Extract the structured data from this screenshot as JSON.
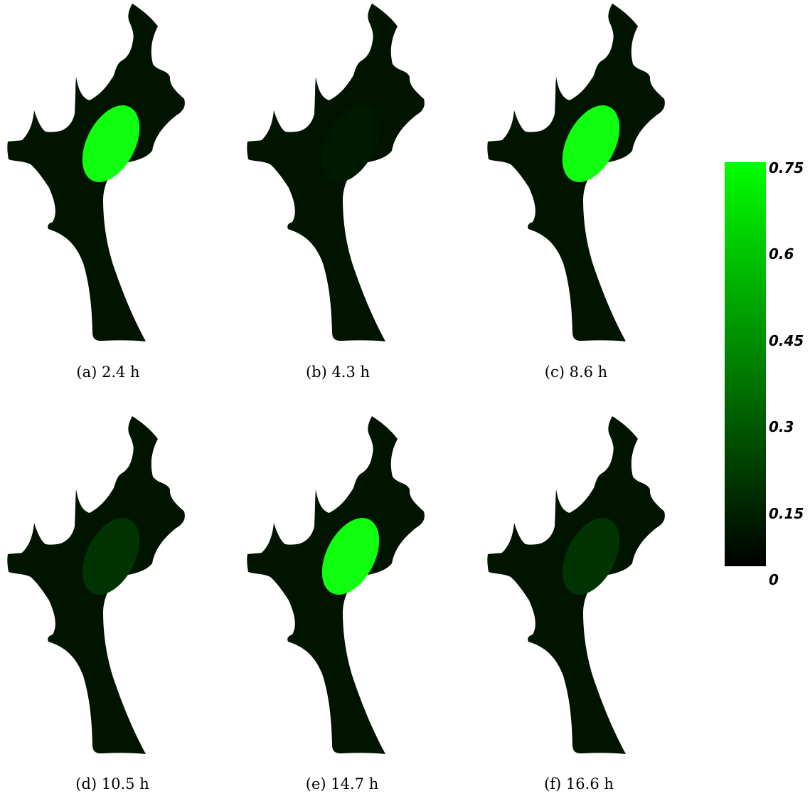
{
  "colors": {
    "cell": "#001400",
    "background": "#ffffff",
    "scale_low": "#000000",
    "scale_high": "#00ff00"
  },
  "panels": [
    {
      "id": "a",
      "caption": "(a) 2.4 h",
      "nucleus_value": 0.75
    },
    {
      "id": "b",
      "caption": "(b) 4.3 h",
      "nucleus_value": 0.02
    },
    {
      "id": "c",
      "caption": "(c) 8.6 h",
      "nucleus_value": 0.75
    },
    {
      "id": "d",
      "caption": "(d) 10.5 h",
      "nucleus_value": 0.1
    },
    {
      "id": "e",
      "caption": "(e) 14.7 h",
      "nucleus_value": 0.75
    },
    {
      "id": "f",
      "caption": "(f) 16.6 h",
      "nucleus_value": 0.1
    }
  ],
  "colorbar": {
    "min": 0,
    "max": 0.75,
    "ticks": [
      "0.75",
      "0.6",
      "0.45",
      "0.3",
      "0.15",
      "0"
    ]
  }
}
